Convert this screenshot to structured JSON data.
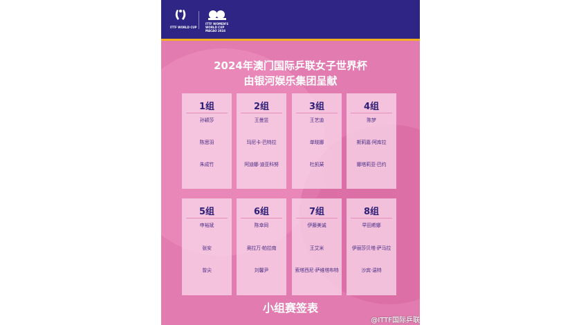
{
  "header": {
    "logo1_text": "ITTF WORLD CUP",
    "logo2_text": "ITTF WOMEN'S WORLD CUP MACAO 2024"
  },
  "title_line1": "2024年澳门国际乒联女子世界杯",
  "title_line2": "由银河娱乐集团呈献",
  "groups": [
    {
      "label": "1组",
      "players": [
        "孙颖莎",
        "陈思羽",
        "朱成竹"
      ]
    },
    {
      "label": "2组",
      "players": [
        "王曼昱",
        "玛尼卡·巴特拉",
        "阿迪娜·迪亚科努"
      ]
    },
    {
      "label": "3组",
      "players": [
        "王艺迪",
        "单晓娜",
        "杜凯琹"
      ]
    },
    {
      "label": "4组",
      "players": [
        "陈梦",
        "斯莉嘉·阿库拉",
        "娜塔莉亚·巴约"
      ]
    },
    {
      "label": "5组",
      "players": [
        "申裕斌",
        "张安",
        "曾尖"
      ]
    },
    {
      "label": "6组",
      "players": [
        "陈幸同",
        "奥拉万·帕拉南",
        "刘馨尹"
      ]
    },
    {
      "label": "7组",
      "players": [
        "伊藤美诚",
        "王艾米",
        "索塔西尼·萨维塔布特"
      ]
    },
    {
      "label": "8组",
      "players": [
        "早田希娜",
        "伊丽莎贝塔·萨马拉",
        "沙宾·温特"
      ]
    }
  ],
  "footer": "小组赛签表",
  "watermark": "@ITTF国际乒联",
  "colors": {
    "banner": "#2e2584",
    "gold": "#f2b01e",
    "background": "#e27bb0",
    "text_dark": "#2e2077"
  }
}
